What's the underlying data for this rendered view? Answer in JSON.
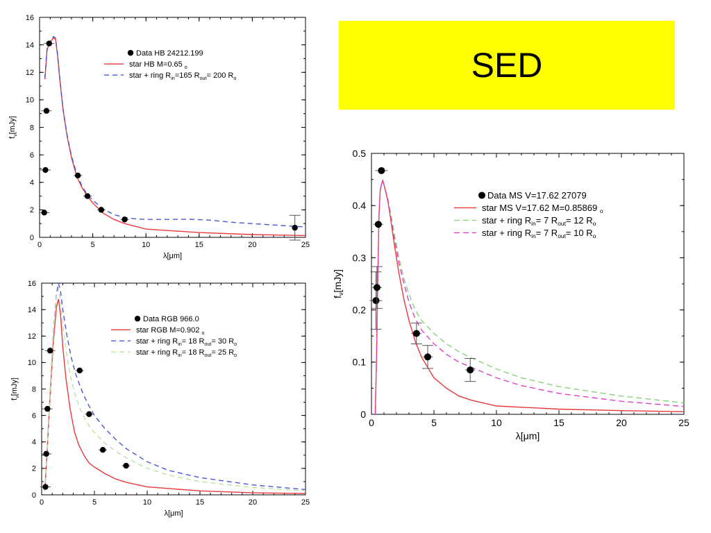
{
  "banner": {
    "text": "SED",
    "color": "#ffff00"
  },
  "chart_data": [
    {
      "id": "hb",
      "type": "line",
      "xlabel": "λ[μm]",
      "ylabel": "f_ν[mJy]",
      "xlim": [
        0,
        25
      ],
      "ylim": [
        0,
        16
      ],
      "xticks": [
        0,
        5,
        10,
        15,
        20,
        25
      ],
      "yticks": [
        0,
        2,
        4,
        6,
        8,
        10,
        12,
        14,
        16
      ],
      "grid": false,
      "legend_position": "top-right",
      "points_name": "Data",
      "points_label": "HB 24212.199",
      "points": [
        {
          "x": 0.44,
          "y": 1.8,
          "xerr": 0.5
        },
        {
          "x": 0.55,
          "y": 4.9,
          "xerr": 0.5
        },
        {
          "x": 0.65,
          "y": 9.2,
          "xerr": 0.5
        },
        {
          "x": 0.9,
          "y": 14.1,
          "xerr": 0.5
        },
        {
          "x": 3.6,
          "y": 4.5,
          "xerr": 0.4
        },
        {
          "x": 4.5,
          "y": 3.0,
          "xerr": 0.4
        },
        {
          "x": 5.8,
          "y": 2.0,
          "xerr": 0.4
        },
        {
          "x": 8.0,
          "y": 1.3,
          "xerr": 0.4
        },
        {
          "x": 24.0,
          "y": 0.7,
          "yerr": 0.9
        }
      ],
      "series": [
        {
          "name": "star HB M=0.65",
          "sub": "",
          "unit": "M",
          "unit_sub": "o",
          "color": "#e8393a",
          "dash": "",
          "x": [
            0.5,
            0.7,
            0.9,
            1.1,
            1.3,
            1.5,
            1.7,
            1.9,
            2.2,
            2.6,
            3.0,
            3.5,
            4.0,
            4.5,
            5.0,
            6.0,
            7.0,
            8.0,
            10.0,
            15.0,
            20.0,
            25.0
          ],
          "y": [
            11.5,
            13.6,
            14.1,
            14.3,
            14.5,
            14.4,
            13.2,
            11.5,
            9.3,
            7.3,
            5.8,
            4.4,
            3.6,
            3.0,
            2.5,
            1.75,
            1.3,
            1.0,
            0.6,
            0.35,
            0.2,
            0.13
          ]
        },
        {
          "name": "star + ring R",
          "sub": "in",
          "unit_pre": "=165 R",
          "sub2": "out",
          "tail": "= 200 R",
          "unit_sub": "o",
          "color": "#4a55d6",
          "dash": "7,5",
          "x": [
            0.5,
            0.7,
            0.9,
            1.1,
            1.3,
            1.5,
            1.7,
            1.9,
            2.2,
            2.6,
            3.0,
            3.5,
            4.0,
            4.5,
            5.0,
            6.0,
            7.0,
            8.0,
            9.0,
            10.0,
            12.0,
            14.0,
            16.0,
            18.0,
            20.0,
            22.0,
            25.0
          ],
          "y": [
            11.6,
            13.7,
            14.2,
            14.4,
            14.6,
            14.5,
            13.3,
            11.6,
            9.4,
            7.4,
            5.9,
            4.6,
            3.7,
            3.1,
            2.7,
            2.05,
            1.65,
            1.45,
            1.35,
            1.3,
            1.3,
            1.32,
            1.25,
            1.1,
            1.0,
            0.9,
            0.75
          ]
        }
      ]
    },
    {
      "id": "rgb",
      "type": "line",
      "xlabel": "λ[μm]",
      "ylabel": "f_ν[mJy]",
      "xlim": [
        0,
        25
      ],
      "ylim": [
        0,
        16
      ],
      "xticks": [
        0,
        5,
        10,
        15,
        20,
        25
      ],
      "yticks": [
        0,
        2,
        4,
        6,
        8,
        10,
        12,
        14,
        16
      ],
      "grid": false,
      "legend_position": "top-right",
      "points_name": "Data",
      "points_label": "RGB 966.0",
      "points": [
        {
          "x": 0.36,
          "y": 0.6,
          "xerr": 0.5
        },
        {
          "x": 0.44,
          "y": 3.1,
          "xerr": 0.5
        },
        {
          "x": 0.55,
          "y": 6.5,
          "xerr": 0.5
        },
        {
          "x": 0.8,
          "y": 10.9,
          "xerr": 0.5
        },
        {
          "x": 3.6,
          "y": 9.4,
          "xerr": 0.4
        },
        {
          "x": 4.5,
          "y": 6.1,
          "xerr": 0.4
        },
        {
          "x": 5.8,
          "y": 3.4,
          "xerr": 0.4
        },
        {
          "x": 8.0,
          "y": 2.2,
          "xerr": 0.4
        }
      ],
      "series": [
        {
          "name": "star RGB M=0.902",
          "unit": "M",
          "unit_sub": "o",
          "color": "#e8393a",
          "dash": "",
          "x": [
            0.3,
            0.5,
            0.8,
            1.1,
            1.4,
            1.6,
            1.8,
            2.0,
            2.3,
            2.7,
            3.1,
            3.5,
            4.0,
            4.5,
            5.0,
            6.0,
            7.0,
            8.0,
            10.0,
            15.0,
            20.0,
            25.0
          ],
          "y": [
            0.3,
            3.0,
            7.5,
            11.5,
            14.2,
            14.8,
            13.5,
            11.2,
            8.8,
            6.5,
            4.8,
            3.8,
            3.0,
            2.4,
            2.1,
            1.6,
            1.2,
            0.95,
            0.6,
            0.3,
            0.15,
            0.1
          ]
        },
        {
          "name": "star + ring R",
          "sub": "in",
          "unit_pre": "= 18 R",
          "sub2": "out",
          "tail": "= 30 R",
          "unit_sub": "o",
          "color": "#4a55d6",
          "dash": "7,5",
          "x": [
            0.3,
            0.5,
            0.8,
            1.1,
            1.4,
            1.6,
            1.8,
            2.0,
            2.4,
            2.8,
            3.2,
            3.6,
            4.0,
            4.5,
            5.0,
            6.0,
            7.0,
            8.0,
            10.0,
            12.0,
            15.0,
            20.0,
            25.0
          ],
          "y": [
            0.3,
            3.1,
            7.8,
            12.2,
            15.2,
            16.0,
            15.3,
            14.0,
            12.0,
            10.4,
            9.2,
            8.3,
            7.5,
            6.7,
            6.0,
            5.0,
            4.2,
            3.5,
            2.5,
            1.85,
            1.3,
            0.75,
            0.4
          ]
        },
        {
          "name": "star + ring R",
          "sub": "in",
          "unit_pre": "= 18 R",
          "sub2": "out",
          "tail": "= 25 R",
          "unit_sub": "o",
          "color": "#bfe0a0",
          "dash": "7,5",
          "x": [
            0.3,
            0.5,
            0.8,
            1.1,
            1.4,
            1.6,
            1.8,
            2.0,
            2.4,
            2.8,
            3.2,
            3.6,
            4.0,
            4.5,
            5.0,
            6.0,
            7.0,
            8.0,
            10.0,
            12.0,
            15.0,
            20.0,
            25.0
          ],
          "y": [
            0.3,
            3.0,
            7.7,
            12.0,
            15.0,
            15.6,
            14.5,
            12.8,
            10.5,
            8.7,
            7.5,
            6.6,
            5.9,
            5.2,
            4.7,
            3.9,
            3.3,
            2.8,
            2.0,
            1.5,
            1.0,
            0.55,
            0.3
          ]
        }
      ]
    },
    {
      "id": "ms",
      "type": "line",
      "xlabel": "λ[μm]",
      "ylabel": "f_ν[mJy]",
      "xlim": [
        0,
        25
      ],
      "ylim": [
        0,
        0.5
      ],
      "xticks": [
        0,
        5,
        10,
        15,
        20,
        25
      ],
      "yticks": [
        0,
        0.1,
        0.2,
        0.3,
        0.4,
        0.5
      ],
      "grid": false,
      "legend_position": "top-right",
      "points_name": "Data",
      "points_label": "MS V=17.62 27079",
      "points": [
        {
          "x": 0.36,
          "y": 0.218,
          "xerr": 0.5,
          "yerr": 0.055
        },
        {
          "x": 0.44,
          "y": 0.243,
          "xerr": 0.4,
          "yerr": 0.04
        },
        {
          "x": 0.55,
          "y": 0.364,
          "xerr": 0.4
        },
        {
          "x": 0.8,
          "y": 0.467,
          "xerr": 0.5
        },
        {
          "x": 3.6,
          "y": 0.155,
          "xerr": 0.4,
          "yerr": 0.02
        },
        {
          "x": 4.5,
          "y": 0.11,
          "xerr": 0.4,
          "yerr": 0.022
        },
        {
          "x": 7.9,
          "y": 0.085,
          "xerr": 0.4,
          "yerr": 0.022
        }
      ],
      "series": [
        {
          "name": "star MS V=17.62 M=0.85869",
          "unit": "M",
          "unit_sub": "o",
          "color": "#e8393a",
          "dash": "",
          "x": [
            0.3,
            0.4,
            0.5,
            0.6,
            0.7,
            0.8,
            0.9,
            1.0,
            1.1,
            1.3,
            1.5,
            1.8,
            2.2,
            2.6,
            3.0,
            3.5,
            4.0,
            5.0,
            6.0,
            7.0,
            8.0,
            10.0,
            15.0,
            20.0,
            25.0
          ],
          "y": [
            0.0,
            0.1,
            0.25,
            0.38,
            0.43,
            0.44,
            0.448,
            0.44,
            0.43,
            0.41,
            0.38,
            0.33,
            0.27,
            0.22,
            0.18,
            0.14,
            0.11,
            0.07,
            0.05,
            0.035,
            0.027,
            0.016,
            0.01,
            0.007,
            0.005
          ]
        },
        {
          "name": "star + ring R",
          "sub": "in",
          "unit_pre": "= 7 R",
          "sub2": "out",
          "tail": "= 12 R",
          "unit_sub": "o",
          "color": "#8bd07a",
          "dash": "8,5",
          "x": [
            0.3,
            0.4,
            0.5,
            0.6,
            0.7,
            0.8,
            0.9,
            1.0,
            1.1,
            1.3,
            1.5,
            1.8,
            2.2,
            2.6,
            3.0,
            3.5,
            4.0,
            5.0,
            6.0,
            7.0,
            8.0,
            10.0,
            12.0,
            15.0,
            20.0,
            25.0
          ],
          "y": [
            0.0,
            0.1,
            0.25,
            0.38,
            0.43,
            0.44,
            0.448,
            0.44,
            0.432,
            0.415,
            0.39,
            0.35,
            0.3,
            0.26,
            0.23,
            0.2,
            0.18,
            0.155,
            0.135,
            0.12,
            0.108,
            0.087,
            0.07,
            0.053,
            0.035,
            0.022
          ]
        },
        {
          "name": "star + ring R",
          "sub": "in",
          "unit_pre": "= 7 R",
          "sub2": "out",
          "tail": "= 10 R",
          "unit_sub": "o",
          "color": "#e040c8",
          "dash": "8,5",
          "x": [
            0.3,
            0.4,
            0.5,
            0.6,
            0.7,
            0.8,
            0.9,
            1.0,
            1.1,
            1.3,
            1.5,
            1.8,
            2.2,
            2.6,
            3.0,
            3.5,
            4.0,
            5.0,
            6.0,
            7.0,
            8.0,
            10.0,
            12.0,
            15.0,
            20.0,
            25.0
          ],
          "y": [
            0.0,
            0.1,
            0.25,
            0.38,
            0.43,
            0.44,
            0.448,
            0.44,
            0.43,
            0.412,
            0.385,
            0.34,
            0.29,
            0.25,
            0.215,
            0.183,
            0.162,
            0.135,
            0.115,
            0.1,
            0.09,
            0.07,
            0.055,
            0.04,
            0.025,
            0.015
          ]
        }
      ]
    }
  ]
}
